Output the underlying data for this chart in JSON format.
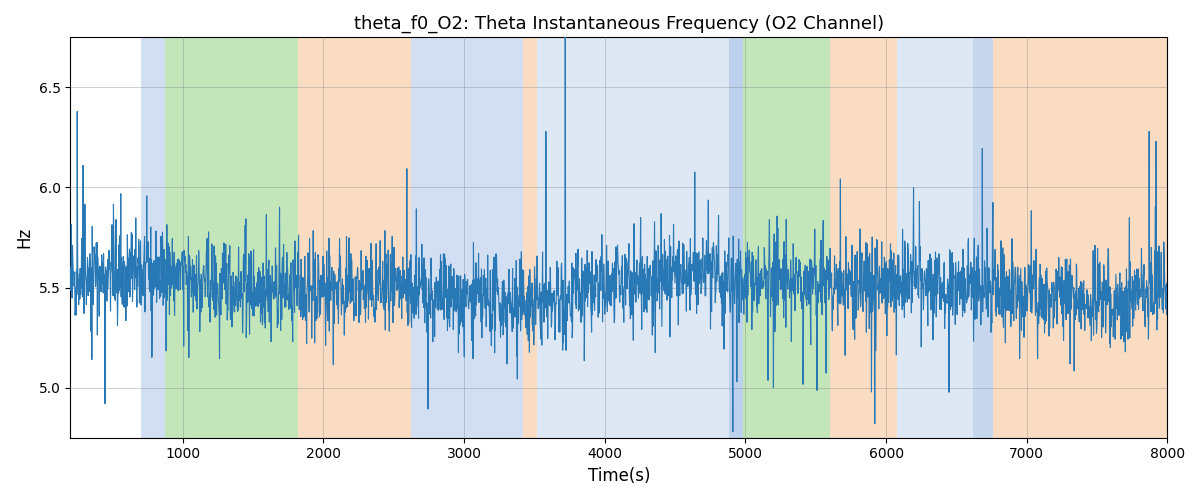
{
  "title": "theta_f0_O2: Theta Instantaneous Frequency (O2 Channel)",
  "xlabel": "Time(s)",
  "ylabel": "Hz",
  "xlim": [
    200,
    8000
  ],
  "ylim": [
    4.75,
    6.75
  ],
  "yticks": [
    5.0,
    5.5,
    6.0,
    6.5
  ],
  "line_color": "#2878b5",
  "background_color": "#ffffff",
  "figsize": [
    12,
    5
  ],
  "dpi": 100,
  "shaded_regions": [
    {
      "xmin": 700,
      "xmax": 870,
      "color": "#aec6e8",
      "alpha": 0.55
    },
    {
      "xmin": 870,
      "xmax": 1820,
      "color": "#90d080",
      "alpha": 0.55
    },
    {
      "xmin": 1820,
      "xmax": 2620,
      "color": "#f5c090",
      "alpha": 0.55
    },
    {
      "xmin": 2620,
      "xmax": 3420,
      "color": "#aec6e8",
      "alpha": 0.55
    },
    {
      "xmin": 3420,
      "xmax": 3520,
      "color": "#f5c090",
      "alpha": 0.55
    },
    {
      "xmin": 3520,
      "xmax": 4880,
      "color": "#aec6e8",
      "alpha": 0.4
    },
    {
      "xmin": 4880,
      "xmax": 4980,
      "color": "#aec6e8",
      "alpha": 0.8
    },
    {
      "xmin": 4980,
      "xmax": 5600,
      "color": "#90d080",
      "alpha": 0.55
    },
    {
      "xmin": 5600,
      "xmax": 6080,
      "color": "#f5c090",
      "alpha": 0.55
    },
    {
      "xmin": 6080,
      "xmax": 6620,
      "color": "#aec6e8",
      "alpha": 0.4
    },
    {
      "xmin": 6620,
      "xmax": 6760,
      "color": "#aec6e8",
      "alpha": 0.7
    },
    {
      "xmin": 6760,
      "xmax": 8100,
      "color": "#f5c090",
      "alpha": 0.55
    }
  ],
  "seed": 42,
  "n_points": 3000,
  "signal_mean": 5.5,
  "noise_std": 0.1,
  "spike_count": 120
}
